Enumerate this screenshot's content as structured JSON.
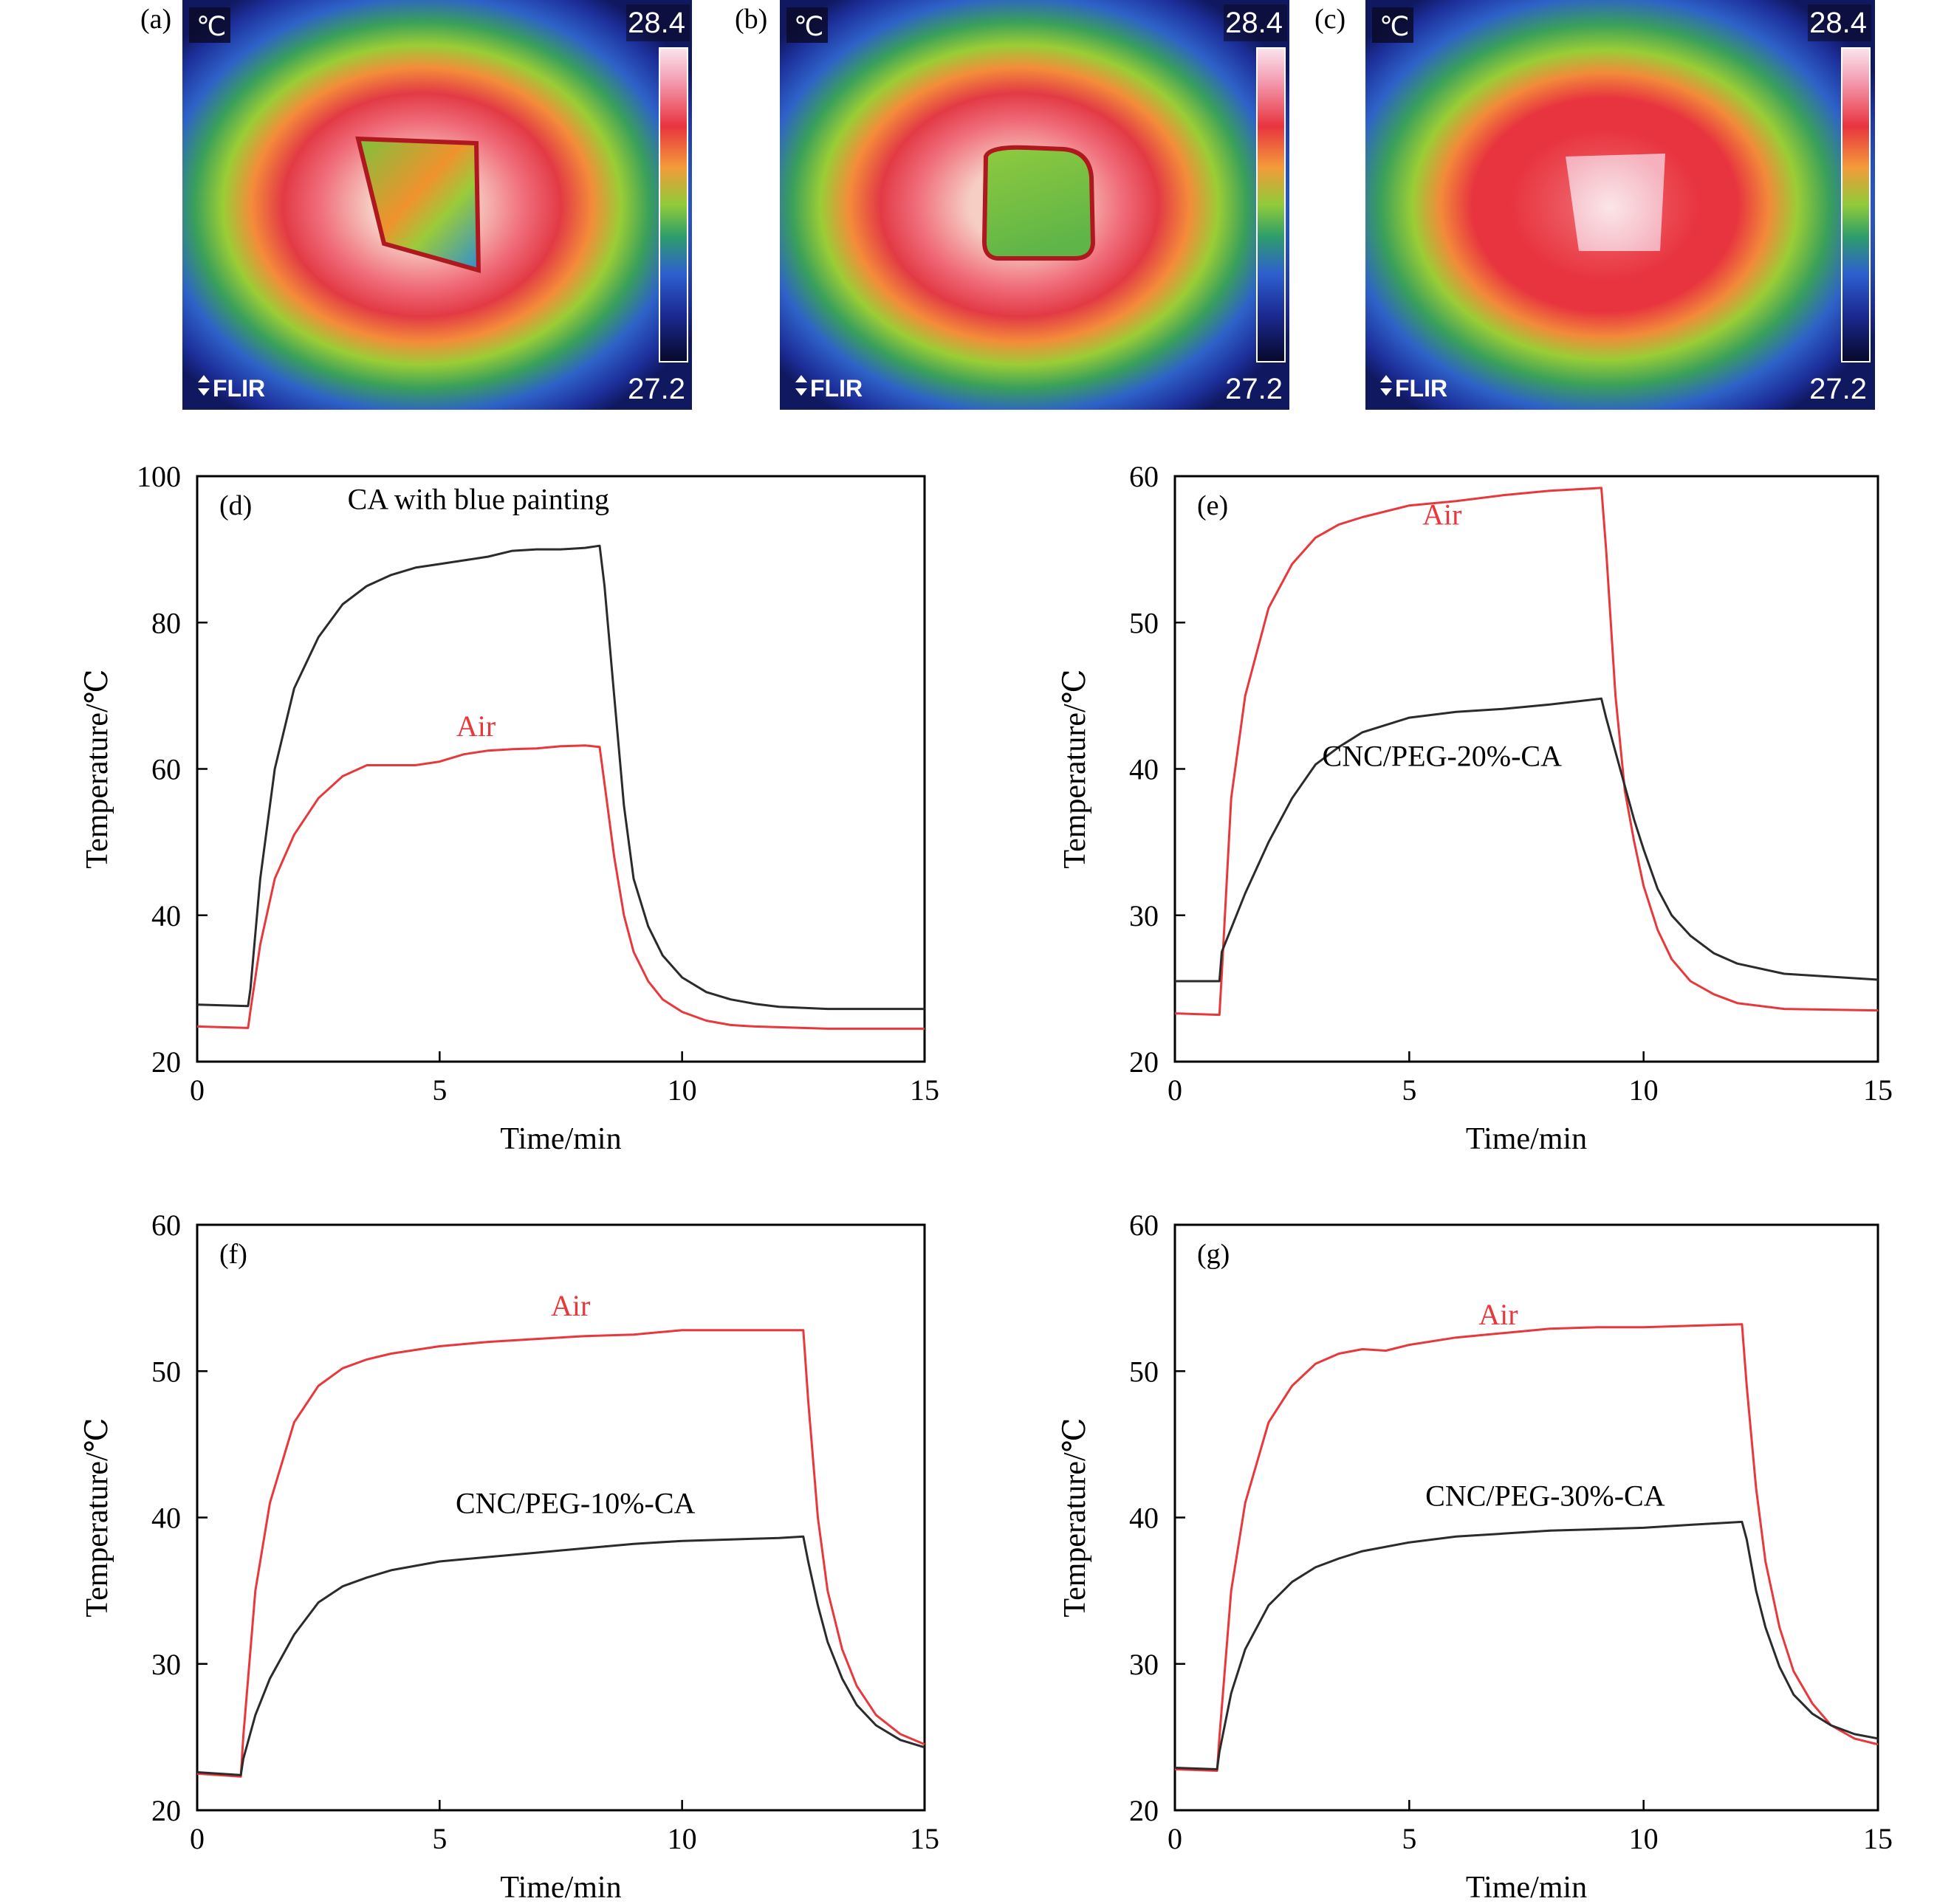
{
  "thermal_images": [
    {
      "letter": "(a)",
      "unit": "℃",
      "max": "28.4",
      "min": "27.2",
      "brand": "FLIR"
    },
    {
      "letter": "(b)",
      "unit": "℃",
      "max": "28.4",
      "min": "27.2",
      "brand": "FLIR"
    },
    {
      "letter": "(c)",
      "unit": "℃",
      "max": "28.4",
      "min": "27.2",
      "brand": "FLIR"
    }
  ],
  "colors": {
    "air": "#e8383c",
    "sample": "#2b2b2b"
  },
  "chart_data": [
    {
      "type": "line",
      "panel": "(d)",
      "xlabel": "Time/min",
      "ylabel": "Temperature/℃",
      "xlim": [
        0,
        15
      ],
      "ylim": [
        20,
        100
      ],
      "xticks": [
        0,
        5,
        10,
        15
      ],
      "yticks": [
        20,
        40,
        60,
        80,
        100
      ],
      "grid": false,
      "series": [
        {
          "name": "CA with blue painting",
          "color": "#2b2b2b",
          "x": [
            0,
            1.05,
            1.1,
            1.3,
            1.6,
            2.0,
            2.5,
            3.0,
            3.5,
            4.0,
            4.5,
            5.0,
            5.5,
            6.0,
            6.5,
            7.0,
            7.5,
            8.0,
            8.3,
            8.4,
            8.6,
            8.8,
            9.0,
            9.3,
            9.6,
            10.0,
            10.5,
            11.0,
            11.5,
            12.0,
            13.0,
            15.0
          ],
          "y": [
            27.8,
            27.6,
            30,
            45,
            60,
            71,
            78,
            82.5,
            85,
            86.5,
            87.5,
            88,
            88.5,
            89,
            89.8,
            90,
            90,
            90.2,
            90.5,
            85,
            70,
            55,
            45,
            38.5,
            34.5,
            31.5,
            29.5,
            28.5,
            27.9,
            27.5,
            27.2,
            27.2
          ]
        },
        {
          "name": "Air",
          "color": "#e8383c",
          "x": [
            0,
            1.05,
            1.1,
            1.3,
            1.6,
            2.0,
            2.5,
            3.0,
            3.5,
            4.0,
            4.5,
            5.0,
            5.5,
            6.0,
            6.5,
            7.0,
            7.5,
            8.0,
            8.3,
            8.4,
            8.6,
            8.8,
            9.0,
            9.3,
            9.6,
            10.0,
            10.5,
            11.0,
            11.5,
            12.0,
            13.0,
            15.0
          ],
          "y": [
            24.8,
            24.6,
            27,
            36,
            45,
            51,
            56,
            59,
            60.5,
            60.5,
            60.5,
            61,
            62,
            62.5,
            62.7,
            62.8,
            63.1,
            63.2,
            63,
            58,
            48,
            40,
            35,
            31,
            28.5,
            26.8,
            25.6,
            25,
            24.8,
            24.7,
            24.5,
            24.5
          ]
        }
      ]
    },
    {
      "type": "line",
      "panel": "(e)",
      "xlabel": "Time/min",
      "ylabel": "Temperature/℃",
      "xlim": [
        0,
        15
      ],
      "ylim": [
        20,
        60
      ],
      "xticks": [
        0,
        5,
        10,
        15
      ],
      "yticks": [
        20,
        30,
        40,
        50,
        60
      ],
      "grid": false,
      "series": [
        {
          "name": "Air",
          "color": "#e8383c",
          "x": [
            0,
            0.95,
            1.0,
            1.2,
            1.5,
            2.0,
            2.5,
            3.0,
            3.5,
            4.0,
            5.0,
            6.0,
            7.0,
            8.0,
            9.1,
            9.2,
            9.4,
            9.6,
            9.8,
            10.0,
            10.3,
            10.6,
            11.0,
            11.5,
            12.0,
            13.0,
            15.0
          ],
          "y": [
            23.3,
            23.2,
            26,
            38,
            45,
            51,
            54,
            55.8,
            56.7,
            57.2,
            58,
            58.3,
            58.7,
            59,
            59.2,
            55,
            45,
            38.5,
            35,
            32,
            29,
            27,
            25.5,
            24.6,
            24,
            23.6,
            23.5
          ]
        },
        {
          "name": "CNC/PEG-20%-CA",
          "color": "#2b2b2b",
          "x": [
            0,
            0.95,
            1.0,
            1.5,
            2.0,
            2.5,
            3.0,
            3.5,
            4.0,
            5.0,
            6.0,
            7.0,
            8.0,
            9.1,
            9.2,
            9.5,
            9.8,
            10.0,
            10.3,
            10.6,
            11.0,
            11.5,
            12.0,
            13.0,
            15.0
          ],
          "y": [
            25.5,
            25.5,
            27.5,
            31.5,
            35,
            38,
            40.3,
            41.5,
            42.5,
            43.5,
            43.9,
            44.1,
            44.4,
            44.8,
            43.5,
            40,
            36.5,
            34.5,
            31.8,
            30,
            28.6,
            27.4,
            26.7,
            26,
            25.6
          ]
        }
      ]
    },
    {
      "type": "line",
      "panel": "(f)",
      "xlabel": "Time/min",
      "ylabel": "Temperature/℃",
      "xlim": [
        0,
        15
      ],
      "ylim": [
        20,
        60
      ],
      "xticks": [
        0,
        5,
        10,
        15
      ],
      "yticks": [
        20,
        30,
        40,
        50,
        60
      ],
      "grid": false,
      "series": [
        {
          "name": "Air",
          "color": "#e8383c",
          "x": [
            0,
            0.9,
            0.95,
            1.2,
            1.5,
            2.0,
            2.5,
            3.0,
            3.5,
            4.0,
            5.0,
            6.0,
            7.0,
            8.0,
            9.0,
            10.0,
            11.0,
            12.0,
            12.5,
            12.6,
            12.8,
            13.0,
            13.3,
            13.6,
            14.0,
            14.5,
            15.0
          ],
          "y": [
            22.5,
            22.3,
            25,
            35,
            41,
            46.5,
            49,
            50.2,
            50.8,
            51.2,
            51.7,
            52,
            52.2,
            52.4,
            52.5,
            52.8,
            52.8,
            52.8,
            52.8,
            48,
            40,
            35,
            31,
            28.5,
            26.5,
            25.2,
            24.5
          ]
        },
        {
          "name": "CNC/PEG-10%-CA",
          "color": "#2b2b2b",
          "x": [
            0,
            0.9,
            0.95,
            1.2,
            1.5,
            2.0,
            2.5,
            3.0,
            3.5,
            4.0,
            5.0,
            6.0,
            7.0,
            8.0,
            9.0,
            10.0,
            11.0,
            12.0,
            12.5,
            12.6,
            12.8,
            13.0,
            13.3,
            13.6,
            14.0,
            14.5,
            15.0
          ],
          "y": [
            22.6,
            22.4,
            23.5,
            26.5,
            29,
            32,
            34.2,
            35.3,
            35.9,
            36.4,
            37,
            37.3,
            37.6,
            37.9,
            38.2,
            38.4,
            38.5,
            38.6,
            38.7,
            37,
            34,
            31.5,
            29,
            27.2,
            25.8,
            24.8,
            24.3
          ]
        }
      ]
    },
    {
      "type": "line",
      "panel": "(g)",
      "xlabel": "Time/min",
      "ylabel": "Temperature/℃",
      "xlim": [
        0,
        15
      ],
      "ylim": [
        20,
        60
      ],
      "xticks": [
        0,
        5,
        10,
        15
      ],
      "yticks": [
        20,
        30,
        40,
        50,
        60
      ],
      "grid": false,
      "series": [
        {
          "name": "Air",
          "color": "#e8383c",
          "x": [
            0,
            0.9,
            0.95,
            1.2,
            1.5,
            2.0,
            2.5,
            3.0,
            3.5,
            4.0,
            4.5,
            5.0,
            6.0,
            7.0,
            8.0,
            9.0,
            10.0,
            11.0,
            12.1,
            12.2,
            12.4,
            12.6,
            12.9,
            13.2,
            13.6,
            14.0,
            14.5,
            15.0
          ],
          "y": [
            22.8,
            22.7,
            25,
            35,
            41,
            46.5,
            49,
            50.5,
            51.2,
            51.5,
            51.4,
            51.8,
            52.3,
            52.6,
            52.9,
            53,
            53,
            53.1,
            53.2,
            49,
            42,
            37,
            32.5,
            29.5,
            27.3,
            25.8,
            24.9,
            24.5
          ]
        },
        {
          "name": "CNC/PEG-30%-CA",
          "color": "#2b2b2b",
          "x": [
            0,
            0.9,
            0.95,
            1.2,
            1.5,
            2.0,
            2.5,
            3.0,
            3.5,
            4.0,
            5.0,
            6.0,
            7.0,
            8.0,
            9.0,
            10.0,
            11.0,
            12.1,
            12.2,
            12.4,
            12.6,
            12.9,
            13.2,
            13.6,
            14.0,
            14.5,
            15.0
          ],
          "y": [
            22.9,
            22.8,
            24,
            28,
            31,
            34,
            35.6,
            36.6,
            37.2,
            37.7,
            38.3,
            38.7,
            38.9,
            39.1,
            39.2,
            39.3,
            39.5,
            39.7,
            38.5,
            35,
            32.5,
            29.8,
            27.9,
            26.6,
            25.8,
            25.2,
            24.9
          ]
        }
      ]
    }
  ]
}
